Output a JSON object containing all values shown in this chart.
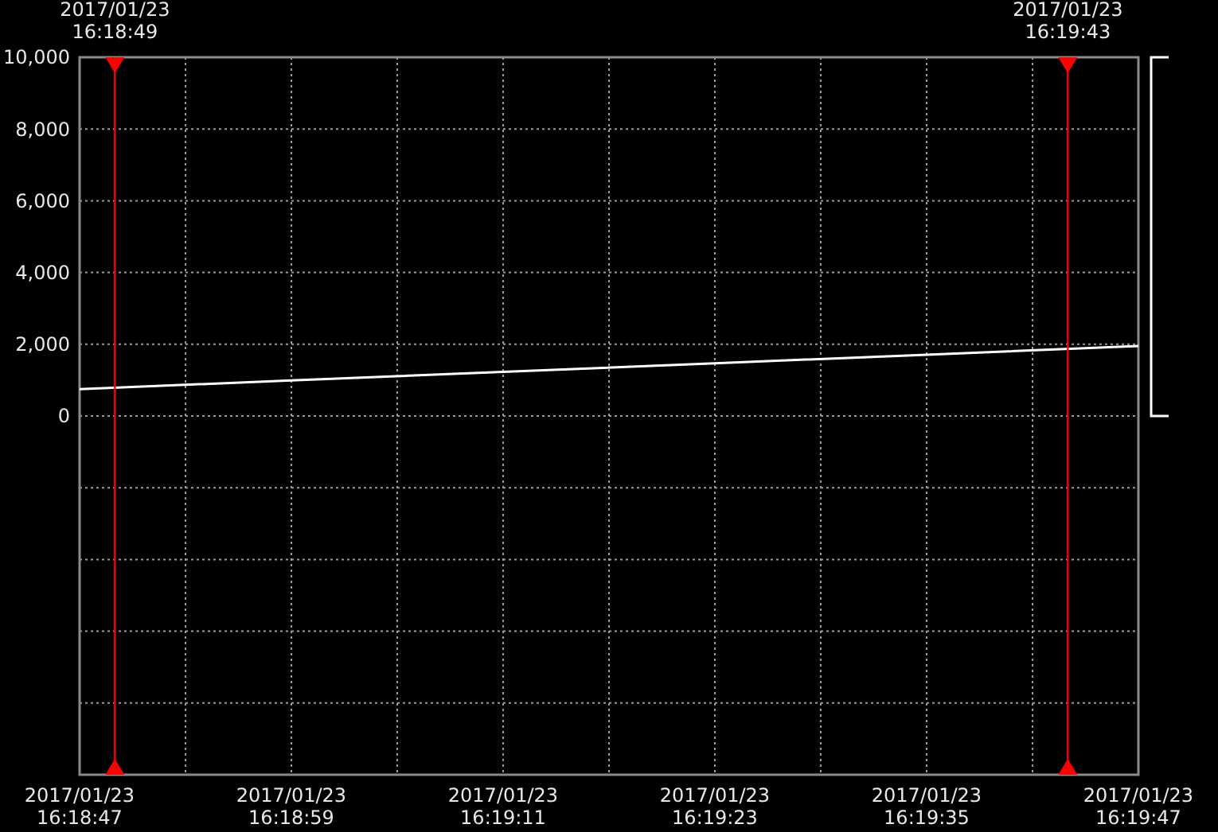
{
  "chart_data": {
    "type": "line",
    "x": [
      "2017-01-23T16:18:47",
      "2017-01-23T16:18:59",
      "2017-01-23T16:19:11",
      "2017-01-23T16:19:23",
      "2017-01-23T16:19:35",
      "2017-01-23T16:19:47"
    ],
    "series": [
      {
        "color": "#ffffff",
        "values": [
          750,
          990,
          1230,
          1470,
          1710,
          1950
        ]
      }
    ],
    "xlim": [
      "2017-01-23T16:18:47",
      "2017-01-23T16:19:47"
    ],
    "xticks": [
      {
        "value": "2017-01-23T16:18:47",
        "label": "2017/01/23 16:18:47"
      },
      {
        "value": "2017-01-23T16:18:53",
        "label": null
      },
      {
        "value": "2017-01-23T16:18:59",
        "label": "2017/01/23 16:18:59"
      },
      {
        "value": "2017-01-23T16:19:05",
        "label": null
      },
      {
        "value": "2017-01-23T16:19:11",
        "label": "2017/01/23 16:19:11"
      },
      {
        "value": "2017-01-23T16:19:17",
        "label": null
      },
      {
        "value": "2017-01-23T16:19:23",
        "label": "2017/01/23 16:19:23"
      },
      {
        "value": "2017-01-23T16:19:29",
        "label": null
      },
      {
        "value": "2017-01-23T16:19:35",
        "label": "2017/01/23 16:19:35"
      },
      {
        "value": "2017-01-23T16:19:41",
        "label": null
      },
      {
        "value": "2017-01-23T16:19:47",
        "label": "2017/01/23 16:19:47"
      }
    ],
    "ylim": [
      -10000,
      10000
    ],
    "yticks": [
      {
        "value": -8000,
        "label": null
      },
      {
        "value": -6000,
        "label": null
      },
      {
        "value": -4000,
        "label": null
      },
      {
        "value": -2000,
        "label": null
      },
      {
        "value": 0,
        "label": "0"
      },
      {
        "value": 2000,
        "label": "2,000"
      },
      {
        "value": 4000,
        "label": "4,000"
      },
      {
        "value": 6000,
        "label": "6,000"
      },
      {
        "value": 8000,
        "label": "8,000"
      },
      {
        "value": 10000,
        "label": "10,000"
      }
    ],
    "grid": true,
    "marker": "none",
    "line_style": "solid",
    "ref_lines": [
      {
        "axis": "x",
        "value": "2017-01-23T16:18:49",
        "label": "2017/01/23 16:18:49",
        "color": "#ff0000"
      },
      {
        "axis": "x",
        "value": "2017-01-23T16:19:43",
        "label": "2017/01/23 16:19:43",
        "color": "#ff0000"
      }
    ]
  }
}
